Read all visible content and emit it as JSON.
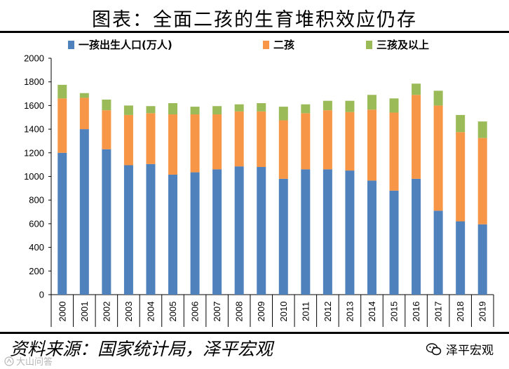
{
  "title": "图表：全面二孩的生育堆积效应仍存",
  "source": "资料来源：国家统计局，泽平宏观",
  "brand": "泽平宏观",
  "watermark": "大山问答",
  "colors": {
    "first": "#4f81bd",
    "second": "#f79646",
    "third": "#9bbb59"
  },
  "chart_data": {
    "type": "bar",
    "stacked": true,
    "categories": [
      "2000",
      "2001",
      "2002",
      "2003",
      "2004",
      "2005",
      "2006",
      "2007",
      "2008",
      "2009",
      "2010",
      "2011",
      "2012",
      "2013",
      "2014",
      "2015",
      "2016",
      "2017",
      "2018",
      "2019"
    ],
    "series": [
      {
        "name": "一孩出生人口(万人)",
        "values": [
          1200,
          1400,
          1230,
          1095,
          1105,
          1015,
          1035,
          1060,
          1085,
          1080,
          980,
          1060,
          1060,
          1050,
          965,
          880,
          980,
          710,
          620,
          595
        ]
      },
      {
        "name": "二孩",
        "values": [
          460,
          265,
          330,
          425,
          430,
          510,
          490,
          465,
          465,
          470,
          495,
          475,
          500,
          495,
          600,
          660,
          710,
          890,
          755,
          730
        ]
      },
      {
        "name": "三孩及以上",
        "values": [
          115,
          40,
          90,
          80,
          60,
          95,
          65,
          70,
          60,
          70,
          115,
          75,
          80,
          95,
          125,
          120,
          95,
          125,
          145,
          140
        ]
      }
    ],
    "ylim": [
      0,
      2000
    ],
    "yticks": [
      0,
      200,
      400,
      600,
      800,
      1000,
      1200,
      1400,
      1600,
      1800,
      2000
    ],
    "legend_position": "top",
    "grid": false
  }
}
